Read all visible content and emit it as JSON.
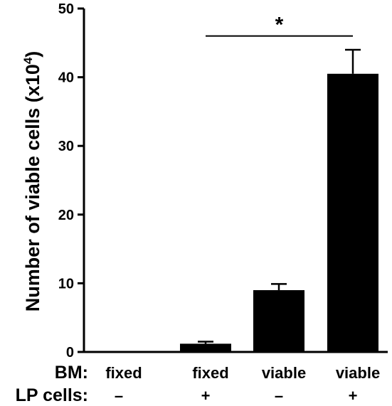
{
  "chart_data": {
    "type": "bar",
    "ylabel": "Number of viable cells (x10",
    "ylabel_sup": "4",
    "ylabel_close": ")",
    "ylim": [
      0,
      50
    ],
    "yticks": [
      "0",
      "10",
      "20",
      "30",
      "40",
      "50"
    ],
    "ytick_values": [
      0,
      10,
      20,
      30,
      40,
      50
    ],
    "categories": [
      "fixed / –",
      "fixed / +",
      "viable / –",
      "viable / +"
    ],
    "values": [
      0,
      1.2,
      9.0,
      40.5
    ],
    "errors": [
      0,
      0.3,
      0.9,
      3.5
    ],
    "bar_color": "#000000",
    "condition_rows": [
      {
        "label": "BM:",
        "values": [
          "fixed",
          "fixed",
          "viable",
          "viable"
        ]
      },
      {
        "label": "LP cells:",
        "values": [
          "–",
          "+",
          "–",
          "+"
        ]
      }
    ],
    "significance": {
      "from": 1,
      "to": 3,
      "label": "*",
      "y": 46
    }
  }
}
